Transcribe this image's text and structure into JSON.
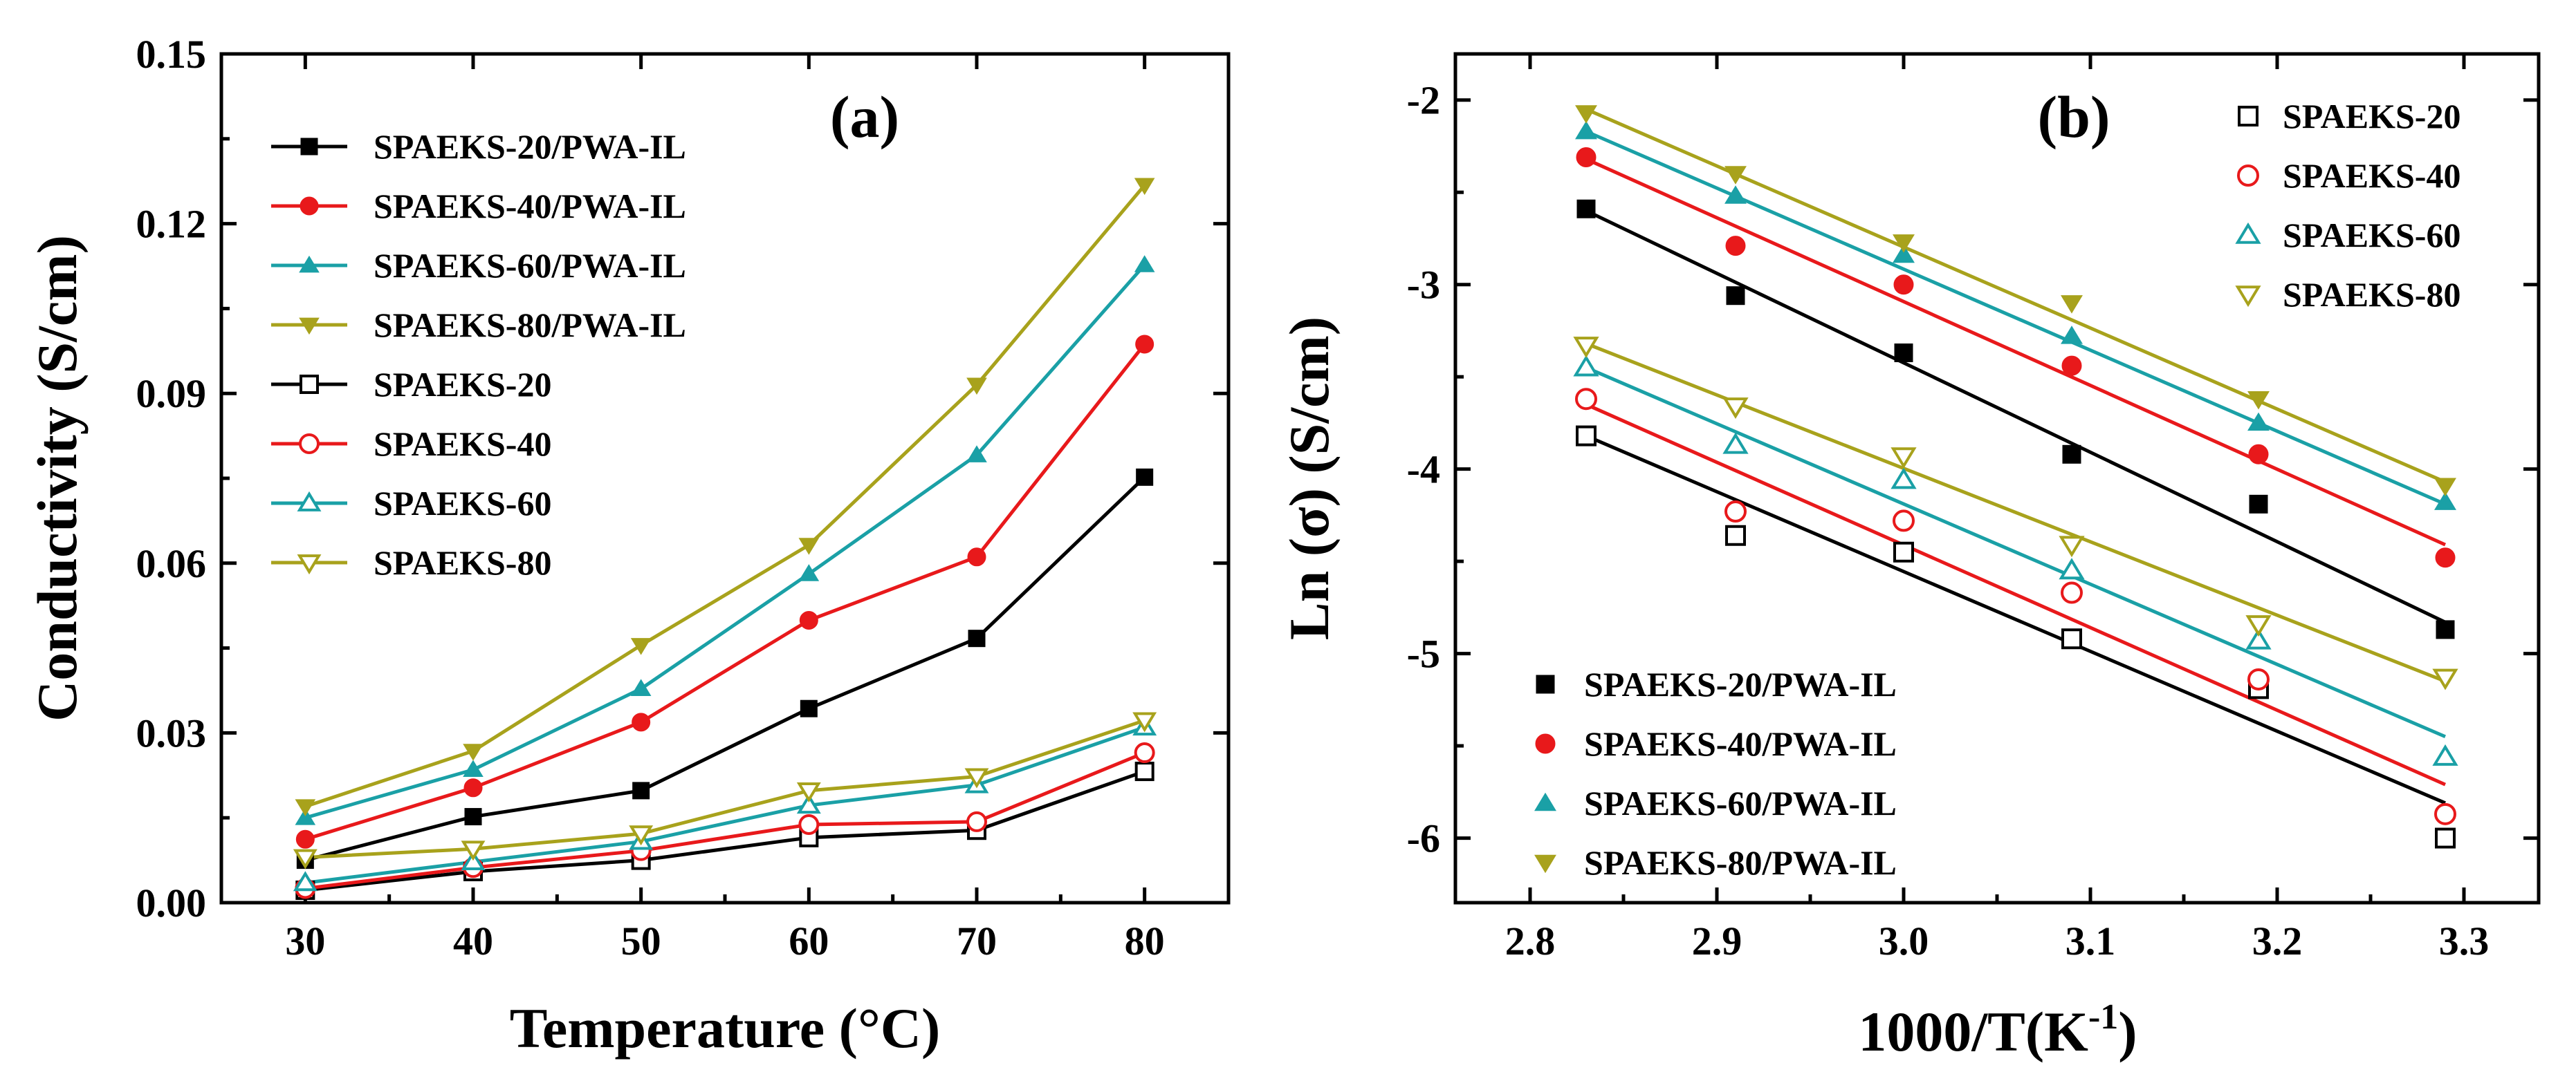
{
  "colors": {
    "20": "#000000",
    "40": "#e8191b",
    "60": "#1aa0a6",
    "80": "#a8a21c"
  },
  "chart_data": [
    {
      "type": "line",
      "panel_label": "(a)",
      "xlabel": "Temperature (°C)",
      "ylabel": "Conductivity (S/cm)",
      "xlim": [
        25,
        85
      ],
      "ylim": [
        0,
        0.15
      ],
      "xticks": [
        30,
        40,
        50,
        60,
        70,
        80
      ],
      "xtick_labels": [
        "30",
        "40",
        "50",
        "60",
        "70",
        "80"
      ],
      "yticks": [
        0,
        0.03,
        0.06,
        0.09,
        0.12,
        0.15
      ],
      "ytick_labels": [
        "0.00",
        "0.03",
        "0.06",
        "0.09",
        "0.12",
        "0.15"
      ],
      "legend_position": "top-left",
      "x": [
        30,
        40,
        50,
        60,
        70,
        80
      ],
      "series": [
        {
          "name": "SPAEKS-20/PWA-IL",
          "color_key": "20",
          "marker": "square-filled",
          "values": [
            0.0075,
            0.0152,
            0.0198,
            0.0343,
            0.0467,
            0.0752
          ]
        },
        {
          "name": "SPAEKS-40/PWA-IL",
          "color_key": "40",
          "marker": "circle-filled",
          "values": [
            0.0112,
            0.0203,
            0.0319,
            0.0499,
            0.0611,
            0.0987
          ]
        },
        {
          "name": "SPAEKS-60/PWA-IL",
          "color_key": "60",
          "marker": "triangle-up-filled",
          "values": [
            0.015,
            0.0235,
            0.0378,
            0.0581,
            0.0791,
            0.1127
          ]
        },
        {
          "name": "SPAEKS-80/PWA-IL",
          "color_key": "80",
          "marker": "triangle-down-filled",
          "values": [
            0.017,
            0.0268,
            0.0455,
            0.0632,
            0.0915,
            0.1268
          ]
        },
        {
          "name": "SPAEKS-20",
          "color_key": "20",
          "marker": "square-open",
          "values": [
            0.0022,
            0.0055,
            0.0075,
            0.0115,
            0.0128,
            0.0232
          ]
        },
        {
          "name": "SPAEKS-40",
          "color_key": "40",
          "marker": "circle-open",
          "values": [
            0.0025,
            0.0062,
            0.0092,
            0.0138,
            0.0143,
            0.0265
          ]
        },
        {
          "name": "SPAEKS-60",
          "color_key": "60",
          "marker": "triangle-up-open",
          "values": [
            0.0035,
            0.0072,
            0.0108,
            0.0172,
            0.0208,
            0.031
          ]
        },
        {
          "name": "SPAEKS-80",
          "color_key": "80",
          "marker": "triangle-down-open",
          "values": [
            0.008,
            0.0095,
            0.0122,
            0.0198,
            0.0223,
            0.0322
          ]
        }
      ]
    },
    {
      "type": "scatter",
      "panel_label": "(b)",
      "xlabel": "1000/T(K",
      "xlabel_superscript": "-1",
      "xlabel_suffix": ")",
      "ylabel": "Ln (σ) (S/cm)",
      "xlim": [
        2.76,
        3.34
      ],
      "ylim": [
        -6.35,
        -1.75
      ],
      "xticks": [
        2.8,
        2.9,
        3.0,
        3.1,
        3.2,
        3.3
      ],
      "xtick_labels": [
        "2.8",
        "2.9",
        "3.0",
        "3.1",
        "3.2",
        "3.3"
      ],
      "yticks": [
        -2,
        -3,
        -4,
        -5,
        -6
      ],
      "ytick_labels": [
        "-2",
        "-3",
        "-4",
        "-5",
        "-6"
      ],
      "legend_position": "top-right and bottom-left",
      "x": [
        2.83,
        2.91,
        3.0,
        3.09,
        3.19,
        3.29
      ],
      "series": [
        {
          "name": "SPAEKS-20/PWA-IL",
          "color_key": "20",
          "marker": "square-filled",
          "values": [
            -2.59,
            -3.06,
            -3.37,
            -3.92,
            -4.19,
            -4.87
          ],
          "fit": [
            -2.6,
            -4.83
          ]
        },
        {
          "name": "SPAEKS-40/PWA-IL",
          "color_key": "40",
          "marker": "circle-filled",
          "values": [
            -2.31,
            -2.79,
            -3.0,
            -3.44,
            -3.92,
            -4.48
          ],
          "fit": [
            -2.32,
            -4.41
          ]
        },
        {
          "name": "SPAEKS-60/PWA-IL",
          "color_key": "60",
          "marker": "triangle-up-filled",
          "values": [
            -2.17,
            -2.52,
            -2.84,
            -3.28,
            -3.75,
            -4.18
          ],
          "fit": [
            -2.17,
            -4.19
          ]
        },
        {
          "name": "SPAEKS-80/PWA-IL",
          "color_key": "80",
          "marker": "triangle-down-filled",
          "values": [
            -2.07,
            -2.4,
            -2.77,
            -3.1,
            -3.62,
            -4.09
          ],
          "fit": [
            -2.05,
            -4.07
          ]
        },
        {
          "name": "SPAEKS-20",
          "color_key": "20",
          "marker": "square-open",
          "values": [
            -3.82,
            -4.36,
            -4.45,
            -4.92,
            -5.19,
            -6.0
          ],
          "fit": [
            -3.82,
            -5.81
          ]
        },
        {
          "name": "SPAEKS-40",
          "color_key": "40",
          "marker": "circle-open",
          "values": [
            -3.62,
            -4.23,
            -4.28,
            -4.67,
            -5.14,
            -5.87
          ],
          "fit": [
            -3.65,
            -5.71
          ]
        },
        {
          "name": "SPAEKS-60",
          "color_key": "60",
          "marker": "triangle-up-open",
          "values": [
            -3.45,
            -3.87,
            -4.06,
            -4.55,
            -4.93,
            -5.56
          ],
          "fit": [
            -3.45,
            -5.45
          ]
        },
        {
          "name": "SPAEKS-80",
          "color_key": "80",
          "marker": "triangle-down-open",
          "values": [
            -3.33,
            -3.66,
            -3.93,
            -4.41,
            -4.84,
            -5.13
          ],
          "fit": [
            -3.32,
            -5.15
          ]
        }
      ]
    }
  ]
}
